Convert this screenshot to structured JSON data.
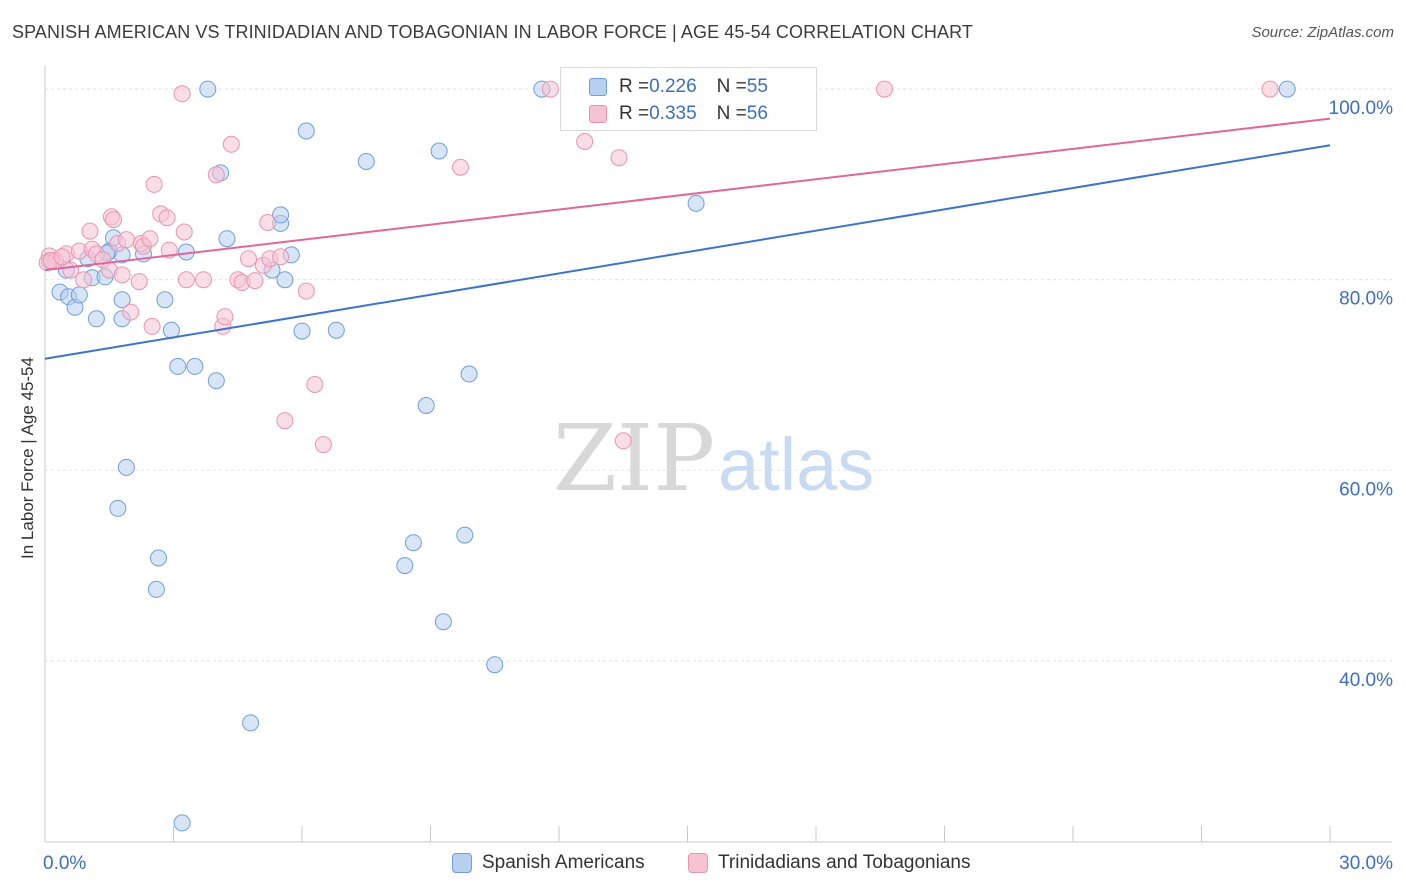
{
  "header": {
    "title": "SPANISH AMERICAN VS TRINIDADIAN AND TOBAGONIAN IN LABOR FORCE | AGE 45-54 CORRELATION CHART",
    "source": "Source: ZipAtlas.com"
  },
  "watermark": {
    "zip": "ZIP",
    "atlas": "atlas"
  },
  "legend_top": {
    "rows": [
      {
        "r_label": "R = ",
        "r_value": "0.226",
        "n_label": "N = ",
        "n_value": "55"
      },
      {
        "r_label": "R = ",
        "r_value": "0.335",
        "n_label": "N = ",
        "n_value": "56"
      }
    ]
  },
  "legend_bottom": {
    "items": [
      {
        "label": "Spanish Americans"
      },
      {
        "label": "Trinidadians and Tobagonians"
      }
    ]
  },
  "colors": {
    "blue_fill": "#b7d0f0",
    "blue_stroke": "#6e9fdc",
    "blue_line": "#3b74c9",
    "pink_fill": "#f6c3d3",
    "pink_stroke": "#ec93b0",
    "pink_line": "#e0679a",
    "tick_label": "#3b6fc4",
    "grid": "#e3e3e3"
  },
  "chart_data": {
    "type": "scatter",
    "title": "SPANISH AMERICAN VS TRINIDADIAN AND TOBAGONIAN IN LABOR FORCE | AGE 45-54 CORRELATION CHART",
    "xlabel": "",
    "ylabel": "In Labor Force | Age 45-54",
    "xlim": [
      0,
      30
    ],
    "ylim": [
      21,
      102
    ],
    "x_tick_labels": [
      {
        "value": 0,
        "label": "0.0%"
      },
      {
        "value": 30,
        "label": "30.0%"
      }
    ],
    "y_tick_labels": [
      {
        "value": 40,
        "label": "40.0%"
      },
      {
        "value": 60,
        "label": "60.0%"
      },
      {
        "value": 80,
        "label": "80.0%"
      },
      {
        "value": 100,
        "label": "100.0%"
      }
    ],
    "grid": true,
    "legend_position": "top-center",
    "series": [
      {
        "name": "Spanish Americans",
        "color": "#6e9fdc",
        "trend": {
          "x": [
            0,
            30
          ],
          "y": [
            71.7,
            94.1
          ]
        },
        "points": [
          [
            0.1,
            82.0
          ],
          [
            0.35,
            78.7
          ],
          [
            0.55,
            78.2
          ],
          [
            0.7,
            77.1
          ],
          [
            0.8,
            78.4
          ],
          [
            1.0,
            82.2
          ],
          [
            1.1,
            80.2
          ],
          [
            1.2,
            75.9
          ],
          [
            1.4,
            80.3
          ],
          [
            1.5,
            83.0
          ],
          [
            1.6,
            84.4
          ],
          [
            1.8,
            82.6
          ],
          [
            1.8,
            75.9
          ],
          [
            1.8,
            77.9
          ],
          [
            2.3,
            82.7
          ],
          [
            1.9,
            60.3
          ],
          [
            1.7,
            56.0
          ],
          [
            2.8,
            77.9
          ],
          [
            2.95,
            74.7
          ],
          [
            3.1,
            70.9
          ],
          [
            3.3,
            82.9
          ],
          [
            3.5,
            70.9
          ],
          [
            3.8,
            100.0
          ],
          [
            4.0,
            69.4
          ],
          [
            4.1,
            91.2
          ],
          [
            4.25,
            84.3
          ],
          [
            2.65,
            50.8
          ],
          [
            2.6,
            47.5
          ],
          [
            4.8,
            33.5
          ],
          [
            5.3,
            81.0
          ],
          [
            5.5,
            85.9
          ],
          [
            5.5,
            86.8
          ],
          [
            5.6,
            80.0
          ],
          [
            5.75,
            82.6
          ],
          [
            6.0,
            74.6
          ],
          [
            6.1,
            95.6
          ],
          [
            6.8,
            74.7
          ],
          [
            7.5,
            92.4
          ],
          [
            8.4,
            50.0
          ],
          [
            8.6,
            52.4
          ],
          [
            8.9,
            66.8
          ],
          [
            9.2,
            93.5
          ],
          [
            9.3,
            44.1
          ],
          [
            9.8,
            53.2
          ],
          [
            9.9,
            70.1
          ],
          [
            10.5,
            39.6
          ],
          [
            11.6,
            100.0
          ],
          [
            13.2,
            100.0
          ],
          [
            15.2,
            88.0
          ],
          [
            17.6,
            100.0
          ],
          [
            17.7,
            100.0
          ],
          [
            29.0,
            100.0
          ],
          [
            3.2,
            23.0
          ],
          [
            1.45,
            82.8
          ],
          [
            0.5,
            81.0
          ]
        ]
      },
      {
        "name": "Trinidadians and Tobagonians",
        "color": "#ec93b0",
        "trend": {
          "x": [
            0,
            30
          ],
          "y": [
            81.0,
            96.9
          ]
        },
        "points": [
          [
            0.1,
            82.5
          ],
          [
            0.25,
            82.0
          ],
          [
            0.5,
            82.7
          ],
          [
            0.6,
            81.0
          ],
          [
            0.8,
            83.0
          ],
          [
            0.9,
            80.0
          ],
          [
            1.05,
            85.1
          ],
          [
            1.1,
            83.2
          ],
          [
            1.2,
            82.7
          ],
          [
            1.35,
            82.1
          ],
          [
            1.5,
            81.0
          ],
          [
            1.55,
            86.6
          ],
          [
            1.6,
            86.3
          ],
          [
            1.7,
            83.8
          ],
          [
            1.8,
            80.5
          ],
          [
            1.9,
            84.2
          ],
          [
            2.0,
            76.6
          ],
          [
            2.2,
            79.8
          ],
          [
            2.25,
            83.8
          ],
          [
            2.3,
            83.5
          ],
          [
            2.45,
            84.3
          ],
          [
            2.5,
            75.1
          ],
          [
            2.55,
            90.0
          ],
          [
            2.7,
            86.9
          ],
          [
            2.85,
            86.5
          ],
          [
            2.9,
            83.1
          ],
          [
            3.2,
            99.5
          ],
          [
            3.25,
            85.0
          ],
          [
            3.3,
            80.0
          ],
          [
            3.7,
            80.0
          ],
          [
            4.0,
            91.0
          ],
          [
            4.15,
            75.1
          ],
          [
            4.2,
            76.1
          ],
          [
            4.35,
            94.2
          ],
          [
            4.5,
            80.0
          ],
          [
            4.6,
            79.7
          ],
          [
            4.75,
            82.2
          ],
          [
            4.9,
            79.9
          ],
          [
            5.1,
            81.5
          ],
          [
            5.2,
            86.0
          ],
          [
            5.25,
            82.2
          ],
          [
            5.5,
            82.4
          ],
          [
            5.6,
            65.2
          ],
          [
            6.1,
            78.8
          ],
          [
            6.3,
            69.0
          ],
          [
            6.5,
            62.7
          ],
          [
            9.7,
            91.8
          ],
          [
            11.8,
            100.0
          ],
          [
            12.6,
            94.5
          ],
          [
            13.4,
            92.8
          ],
          [
            13.5,
            63.1
          ],
          [
            19.6,
            100.0
          ],
          [
            28.6,
            100.0
          ],
          [
            0.05,
            81.8
          ],
          [
            0.15,
            82.0
          ],
          [
            0.4,
            82.4
          ]
        ]
      }
    ]
  }
}
